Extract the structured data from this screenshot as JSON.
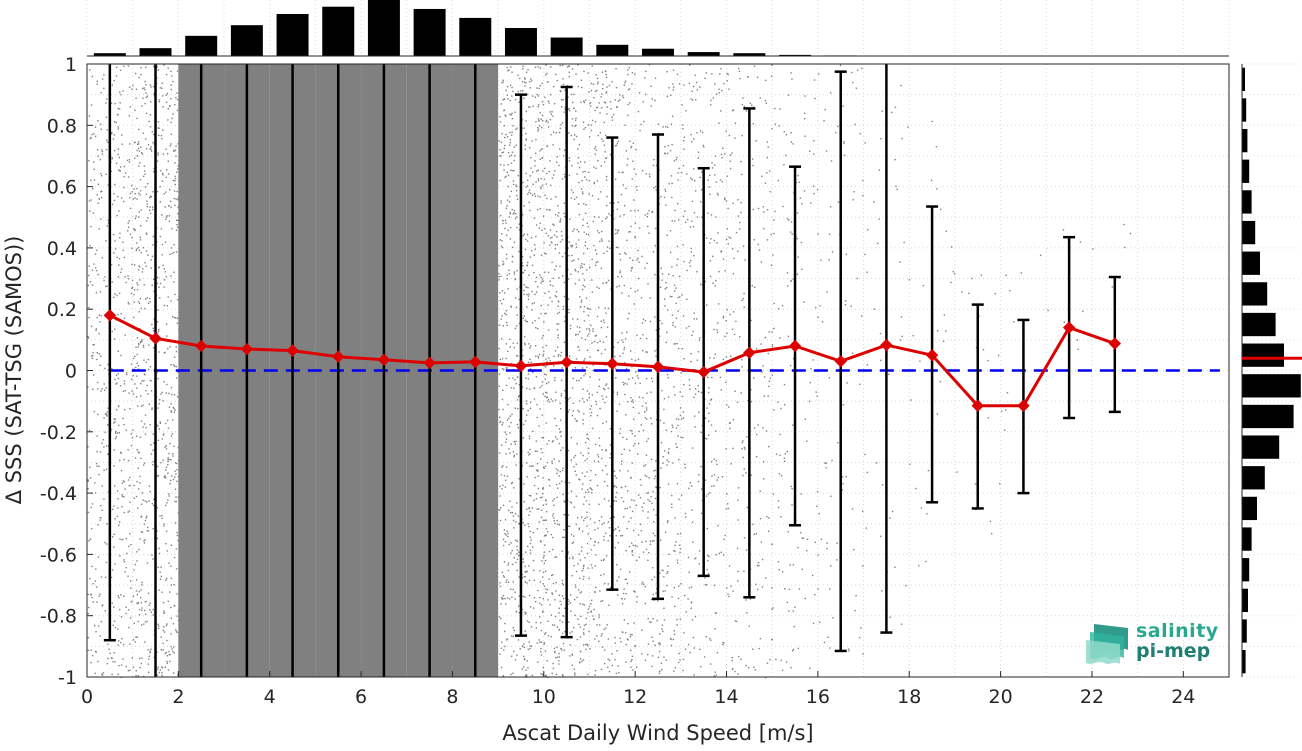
{
  "chart_data": {
    "type": "scatter",
    "title": "",
    "xlabel": "Ascat Daily Wind Speed [m/s]",
    "ylabel": "Δ SSS (SAT-TSG (SAMOS))",
    "xlim": [
      0,
      25
    ],
    "ylim": [
      -1,
      1
    ],
    "x_ticks": [
      0,
      2,
      4,
      6,
      8,
      10,
      12,
      14,
      16,
      18,
      20,
      22,
      24
    ],
    "x_tick_labels": [
      "0",
      "2",
      "4",
      "6",
      "8",
      "10",
      "12",
      "14",
      "16",
      "18",
      "20",
      "22",
      "24"
    ],
    "y_ticks": [
      -1,
      -0.8,
      -0.6,
      -0.4,
      -0.2,
      0,
      0.2,
      0.4,
      0.6,
      0.8,
      1
    ],
    "y_tick_labels": [
      "-1",
      "-0.8",
      "-0.6",
      "-0.4",
      "-0.2",
      "0",
      "0.2",
      "0.4",
      "0.6",
      "0.8",
      "1"
    ],
    "grid": true,
    "reference_line": {
      "y": 0,
      "style": "dashed",
      "color": "#0000ee"
    },
    "scatter_color": "#808080",
    "mean_series": {
      "color": "#dd0000",
      "marker": "diamond",
      "x": [
        0.5,
        1.5,
        2.5,
        3.5,
        4.5,
        5.5,
        6.5,
        7.5,
        8.5,
        9.5,
        10.5,
        11.5,
        12.5,
        13.5,
        14.5,
        15.5,
        16.5,
        17.5,
        18.5,
        19.5,
        20.5,
        21.5,
        22.5
      ],
      "y": [
        0.18,
        0.105,
        0.08,
        0.07,
        0.065,
        0.045,
        0.035,
        0.025,
        0.028,
        0.015,
        0.027,
        0.022,
        0.012,
        -0.005,
        0.058,
        0.08,
        0.03,
        0.083,
        0.05,
        -0.115,
        -0.115,
        0.14,
        0.088
      ]
    },
    "error_bars": {
      "color": "#000000",
      "x": [
        0.5,
        1.5,
        2.5,
        3.5,
        4.5,
        5.5,
        6.5,
        7.5,
        8.5,
        9.5,
        10.5,
        11.5,
        12.5,
        13.5,
        14.5,
        15.5,
        16.5,
        17.5,
        18.5,
        19.5,
        20.5,
        21.5,
        22.5
      ],
      "lower": [
        -0.88,
        -1.0,
        -1.0,
        -1.0,
        -1.0,
        -1.0,
        -1.0,
        -1.0,
        -1.0,
        -0.865,
        -0.87,
        -0.715,
        -0.745,
        -0.67,
        -0.74,
        -0.505,
        -0.915,
        -0.855,
        -0.43,
        -0.45,
        -0.4,
        -0.155,
        -0.135
      ],
      "upper": [
        1.0,
        1.0,
        1.0,
        1.0,
        1.0,
        1.0,
        1.0,
        1.0,
        1.0,
        0.9,
        0.925,
        0.76,
        0.77,
        0.66,
        0.855,
        0.665,
        0.975,
        1.0,
        0.535,
        0.215,
        0.165,
        0.435,
        0.305
      ]
    },
    "scatter_density": {
      "x": [
        0.5,
        1.5,
        2.5,
        3.5,
        4.5,
        5.5,
        6.5,
        7.5,
        8.5,
        9.5,
        10.5,
        11.5,
        12.5,
        13.5,
        14.5,
        15.5,
        16.5,
        17.5,
        18.5,
        19.5,
        20.5,
        21.5,
        22.5
      ],
      "y_low": [
        -1.0,
        -1.0,
        -1.0,
        -1.0,
        -1.0,
        -1.0,
        -1.0,
        -1.0,
        -1.0,
        -1.0,
        -1.0,
        -1.0,
        -1.0,
        -1.0,
        -1.0,
        -1.0,
        -0.95,
        -0.85,
        -0.7,
        -0.55,
        -0.25,
        0.0,
        0.0
      ],
      "y_high": [
        1.0,
        1.0,
        1.0,
        1.0,
        1.0,
        1.0,
        1.0,
        1.0,
        1.0,
        1.0,
        1.0,
        1.0,
        1.0,
        1.0,
        1.0,
        1.0,
        1.0,
        0.95,
        0.85,
        0.45,
        0.4,
        0.55,
        0.55
      ],
      "density": [
        0.55,
        0.8,
        1.0,
        1.0,
        1.0,
        1.0,
        1.0,
        1.0,
        1.0,
        0.9,
        0.8,
        0.6,
        0.45,
        0.35,
        0.25,
        0.16,
        0.09,
        0.05,
        0.03,
        0.02,
        0.01,
        0.01,
        0.005
      ]
    },
    "top_histogram": {
      "x": [
        0.5,
        1.5,
        2.5,
        3.5,
        4.5,
        5.5,
        6.5,
        7.5,
        8.5,
        9.5,
        10.5,
        11.5,
        12.5,
        13.5,
        14.5,
        15.5,
        16.5
      ],
      "values": [
        0.05,
        0.14,
        0.36,
        0.55,
        0.75,
        0.88,
        1.0,
        0.84,
        0.68,
        0.5,
        0.33,
        0.2,
        0.13,
        0.07,
        0.05,
        0.02,
        0.01
      ]
    },
    "right_histogram": {
      "y": [
        0.95,
        0.85,
        0.75,
        0.65,
        0.55,
        0.45,
        0.35,
        0.25,
        0.15,
        0.05,
        -0.05,
        -0.15,
        -0.25,
        -0.35,
        -0.45,
        -0.55,
        -0.65,
        -0.75,
        -0.85,
        -0.95
      ],
      "values": [
        0.05,
        0.07,
        0.09,
        0.12,
        0.16,
        0.22,
        0.3,
        0.42,
        0.56,
        0.7,
        0.98,
        0.86,
        0.62,
        0.38,
        0.25,
        0.16,
        0.12,
        0.1,
        0.08,
        0.06
      ],
      "mean_line": {
        "y": 0.04,
        "color": "#dd0000"
      }
    }
  },
  "logo": {
    "line1": "salinity",
    "line2": "pi-mep",
    "color": "#2aa88f"
  }
}
